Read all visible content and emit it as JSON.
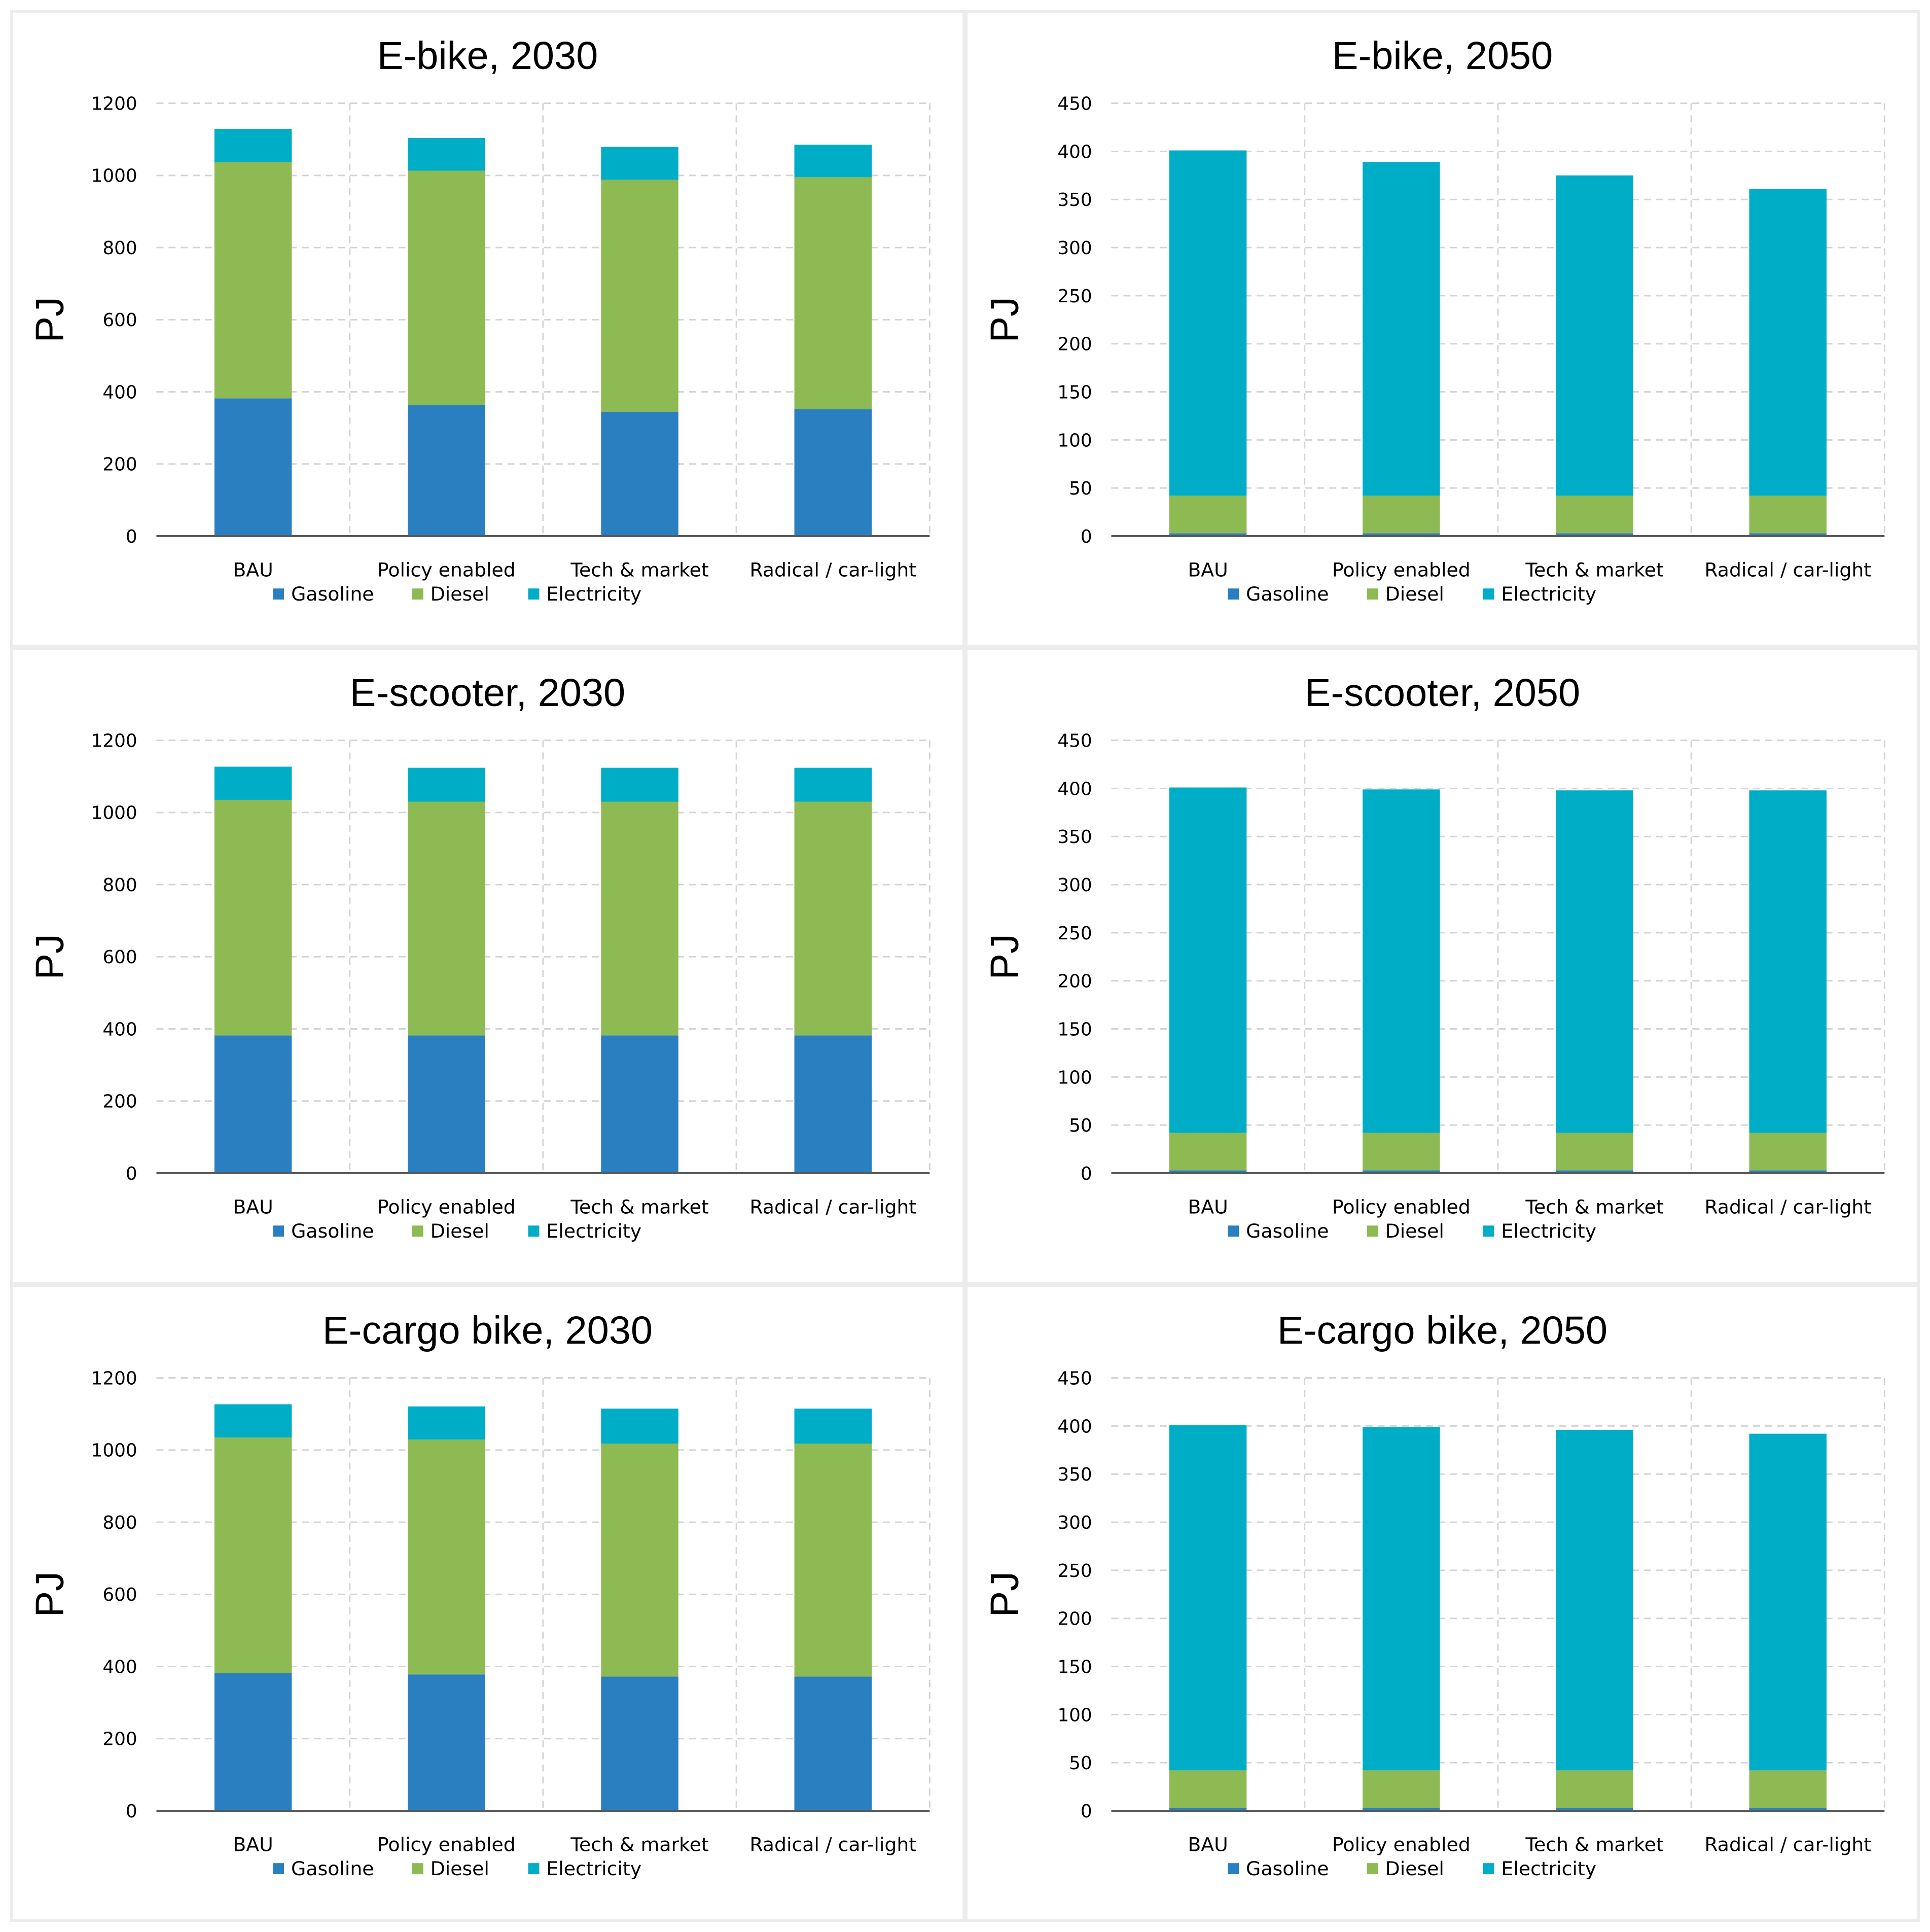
{
  "colors": {
    "Gasoline": "#2a7fc1",
    "Diesel": "#8dba52",
    "Electricity": "#00adc6"
  },
  "chart_data": [
    {
      "type": "bar",
      "stacked": true,
      "title": "E-bike, 2030",
      "ylabel": "PJ",
      "xlabel": "",
      "categories": [
        "BAU",
        "Policy enabled",
        "Tech & market",
        "Radical / car-light"
      ],
      "ylim": [
        0,
        1200
      ],
      "yticks": [
        "0",
        "200",
        "400",
        "600",
        "800",
        "1000",
        "1200"
      ],
      "grid": true,
      "legend": "bottom",
      "series": [
        {
          "name": "Gasoline",
          "values": [
            382,
            363,
            345,
            352
          ]
        },
        {
          "name": "Diesel",
          "values": [
            655,
            650,
            643,
            643
          ]
        },
        {
          "name": "Electricity",
          "values": [
            92,
            91,
            91,
            90
          ]
        }
      ]
    },
    {
      "type": "bar",
      "stacked": true,
      "title": "E-bike, 2050",
      "ylabel": "PJ",
      "xlabel": "",
      "categories": [
        "BAU",
        "Policy enabled",
        "Tech & market",
        "Radical / car-light"
      ],
      "ylim": [
        0,
        450
      ],
      "yticks": [
        "0",
        "50",
        "100",
        "150",
        "200",
        "250",
        "300",
        "350",
        "400",
        "450"
      ],
      "grid": true,
      "legend": "bottom",
      "series": [
        {
          "name": "Gasoline",
          "values": [
            3,
            3,
            3,
            3
          ]
        },
        {
          "name": "Diesel",
          "values": [
            39,
            39,
            39,
            39
          ]
        },
        {
          "name": "Electricity",
          "values": [
            359,
            347,
            333,
            319
          ]
        }
      ]
    },
    {
      "type": "bar",
      "stacked": true,
      "title": "E-scooter, 2030",
      "ylabel": "PJ",
      "xlabel": "",
      "categories": [
        "BAU",
        "Policy enabled",
        "Tech & market",
        "Radical / car-light"
      ],
      "ylim": [
        0,
        1200
      ],
      "yticks": [
        "0",
        "200",
        "400",
        "600",
        "800",
        "1000",
        "1200"
      ],
      "grid": true,
      "legend": "bottom",
      "series": [
        {
          "name": "Gasoline",
          "values": [
            382,
            382,
            382,
            382
          ]
        },
        {
          "name": "Diesel",
          "values": [
            653,
            648,
            648,
            648
          ]
        },
        {
          "name": "Electricity",
          "values": [
            92,
            94,
            94,
            94
          ]
        }
      ]
    },
    {
      "type": "bar",
      "stacked": true,
      "title": "E-scooter, 2050",
      "ylabel": "PJ",
      "xlabel": "",
      "categories": [
        "BAU",
        "Policy enabled",
        "Tech & market",
        "Radical / car-light"
      ],
      "ylim": [
        0,
        450
      ],
      "yticks": [
        "0",
        "50",
        "100",
        "150",
        "200",
        "250",
        "300",
        "350",
        "400",
        "450"
      ],
      "grid": true,
      "legend": "bottom",
      "series": [
        {
          "name": "Gasoline",
          "values": [
            3,
            3,
            3,
            3
          ]
        },
        {
          "name": "Diesel",
          "values": [
            39,
            39,
            39,
            39
          ]
        },
        {
          "name": "Electricity",
          "values": [
            359,
            357,
            356,
            356
          ]
        }
      ]
    },
    {
      "type": "bar",
      "stacked": true,
      "title": "E-cargo bike, 2030",
      "ylabel": "PJ",
      "xlabel": "",
      "categories": [
        "BAU",
        "Policy enabled",
        "Tech & market",
        "Radical / car-light"
      ],
      "ylim": [
        0,
        1200
      ],
      "yticks": [
        "0",
        "200",
        "400",
        "600",
        "800",
        "1000",
        "1200"
      ],
      "grid": true,
      "legend": "bottom",
      "series": [
        {
          "name": "Gasoline",
          "values": [
            382,
            378,
            372,
            372
          ]
        },
        {
          "name": "Diesel",
          "values": [
            653,
            651,
            646,
            646
          ]
        },
        {
          "name": "Electricity",
          "values": [
            92,
            92,
            97,
            97
          ]
        }
      ]
    },
    {
      "type": "bar",
      "stacked": true,
      "title": "E-cargo bike, 2050",
      "ylabel": "PJ",
      "xlabel": "",
      "categories": [
        "BAU",
        "Policy enabled",
        "Tech & market",
        "Radical / car-light"
      ],
      "ylim": [
        0,
        450
      ],
      "yticks": [
        "0",
        "50",
        "100",
        "150",
        "200",
        "250",
        "300",
        "350",
        "400",
        "450"
      ],
      "grid": true,
      "legend": "bottom",
      "series": [
        {
          "name": "Gasoline",
          "values": [
            3,
            3,
            3,
            3
          ]
        },
        {
          "name": "Diesel",
          "values": [
            39,
            39,
            39,
            39
          ]
        },
        {
          "name": "Electricity",
          "values": [
            359,
            357,
            354,
            350
          ]
        }
      ]
    }
  ]
}
